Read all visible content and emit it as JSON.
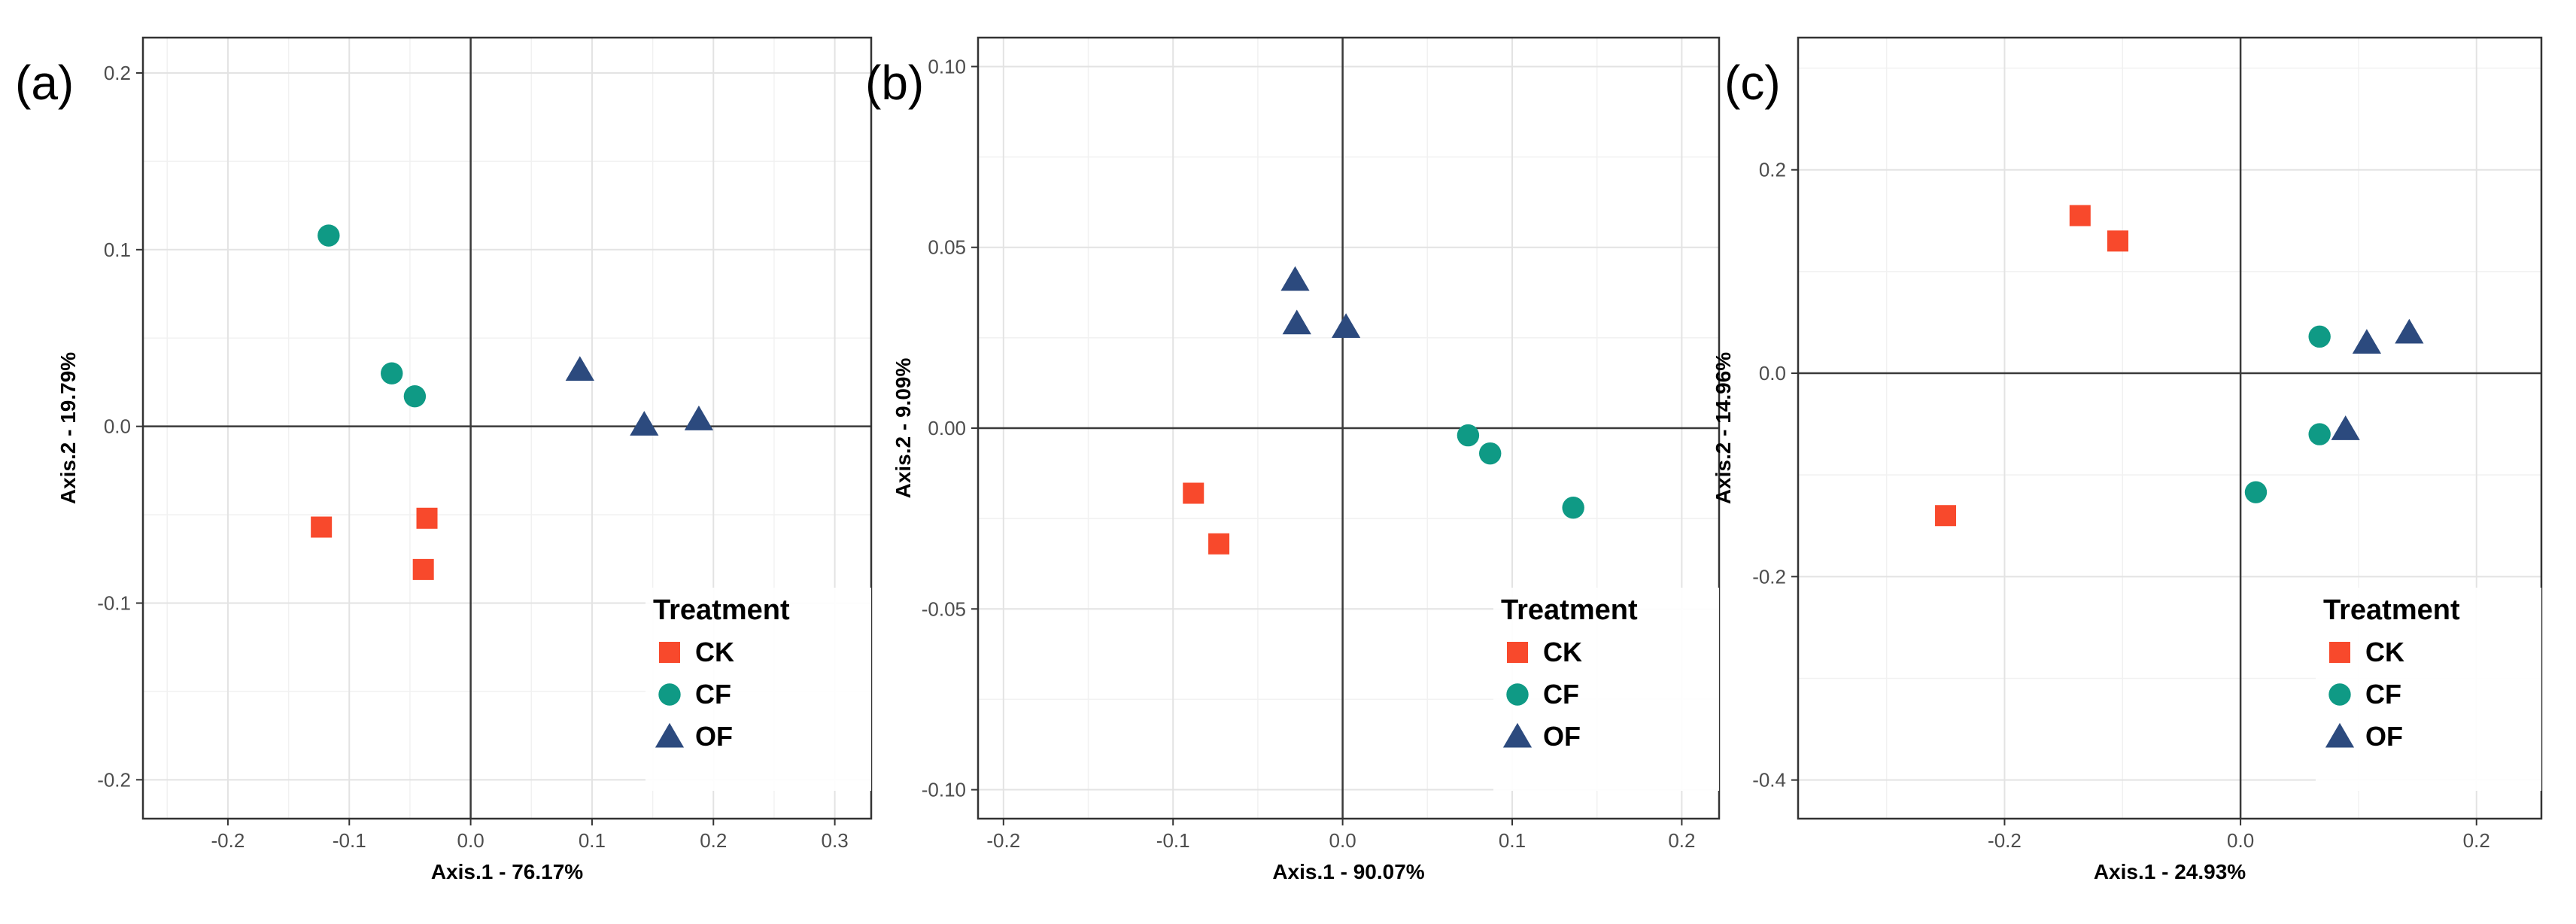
{
  "legend": {
    "title": "Treatment",
    "items": [
      {
        "label": "CK",
        "shape": "square",
        "color": "#F8492C"
      },
      {
        "label": "CF",
        "shape": "circle",
        "color": "#0F9A85"
      },
      {
        "label": "OF",
        "shape": "triangle",
        "color": "#2C4A7E"
      }
    ]
  },
  "chart_data": [
    {
      "type": "scatter",
      "panel_label": "(a)",
      "xlabel": "Axis.1 - 76.17%",
      "ylabel": "Axis.2 - 19.79%",
      "xlim": [
        -0.27,
        0.33
      ],
      "ylim": [
        -0.222,
        0.22
      ],
      "xticks": [
        -0.2,
        -0.1,
        0.0,
        0.1,
        0.2,
        0.3
      ],
      "xtick_labels": [
        "-0.2",
        "-0.1",
        "0.0",
        "0.1",
        "0.2",
        "0.3"
      ],
      "yticks": [
        -0.2,
        -0.1,
        0.0,
        0.1,
        0.2
      ],
      "ytick_labels": [
        "-0.2",
        "-0.1",
        "0.0",
        "0.1",
        "0.2"
      ],
      "legend_position": "bottom-right",
      "series": [
        {
          "name": "CK",
          "x": [
            -0.123,
            -0.036,
            -0.039
          ],
          "y": [
            -0.057,
            -0.052,
            -0.081
          ]
        },
        {
          "name": "CF",
          "x": [
            -0.117,
            -0.065,
            -0.046
          ],
          "y": [
            0.108,
            0.03,
            0.017
          ]
        },
        {
          "name": "OF",
          "x": [
            0.09,
            0.143,
            0.188
          ],
          "y": [
            0.032,
            0.001,
            0.004
          ]
        }
      ]
    },
    {
      "type": "scatter",
      "panel_label": "(b)",
      "xlabel": "Axis.1 - 90.07%",
      "ylabel": "Axis.2 - 9.09%",
      "xlim": [
        -0.215,
        0.222
      ],
      "ylim": [
        -0.108,
        0.108
      ],
      "xticks": [
        -0.2,
        -0.1,
        0.0,
        0.1,
        0.2
      ],
      "xtick_labels": [
        "-0.2",
        "-0.1",
        "0.0",
        "0.1",
        "0.2"
      ],
      "yticks": [
        -0.1,
        -0.05,
        0.0,
        0.05,
        0.1
      ],
      "ytick_labels": [
        "-0.10",
        "-0.05",
        "0.00",
        "0.05",
        "0.10"
      ],
      "legend_position": "bottom-right",
      "series": [
        {
          "name": "CK",
          "x": [
            -0.088,
            -0.073
          ],
          "y": [
            -0.018,
            -0.032
          ]
        },
        {
          "name": "CF",
          "x": [
            0.074,
            0.087,
            0.136
          ],
          "y": [
            -0.002,
            -0.007,
            -0.022
          ]
        },
        {
          "name": "OF",
          "x": [
            -0.028,
            -0.027,
            0.002
          ],
          "y": [
            0.041,
            0.029,
            0.028
          ]
        }
      ]
    },
    {
      "type": "scatter",
      "panel_label": "(c)",
      "xlabel": "Axis.1 - 24.93%",
      "ylabel": "Axis.2 - 14.96%",
      "xlim": [
        -0.375,
        0.255
      ],
      "ylim": [
        -0.438,
        0.33
      ],
      "xticks": [
        -0.2,
        0.0,
        0.2
      ],
      "xtick_labels": [
        "-0.2",
        "0.0",
        "0.2"
      ],
      "yticks": [
        -0.4,
        -0.2,
        0.0,
        0.2
      ],
      "ytick_labels": [
        "-0.4",
        "-0.2",
        "0.0",
        "0.2"
      ],
      "legend_position": "bottom-right",
      "series": [
        {
          "name": "CK",
          "x": [
            -0.25,
            -0.136,
            -0.104
          ],
          "y": [
            -0.14,
            0.155,
            0.13
          ]
        },
        {
          "name": "CF",
          "x": [
            0.013,
            0.067,
            0.067
          ],
          "y": [
            -0.117,
            0.036,
            -0.06
          ]
        },
        {
          "name": "OF",
          "x": [
            0.089,
            0.107,
            0.143
          ],
          "y": [
            -0.055,
            0.03,
            0.04
          ]
        }
      ]
    }
  ]
}
